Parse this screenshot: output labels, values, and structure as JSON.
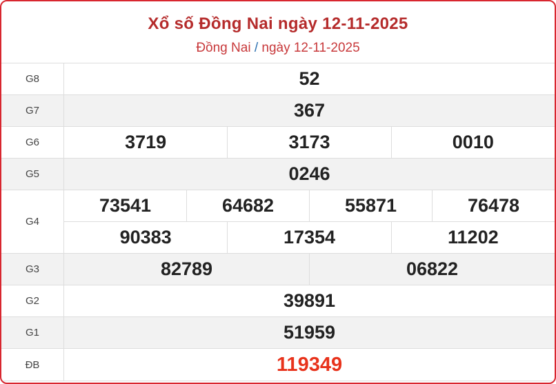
{
  "header": {
    "title": "Xổ số Đồng Nai ngày 12-11-2025",
    "breadcrumb_province": "Đồng Nai",
    "breadcrumb_sep": "/",
    "breadcrumb_date": "ngày 12-11-2025"
  },
  "colors": {
    "border": "#d8262f",
    "title": "#b52b2b",
    "special": "#e8331c"
  },
  "prizes": [
    {
      "label": "G8",
      "lines": [
        [
          "52"
        ]
      ]
    },
    {
      "label": "G7",
      "lines": [
        [
          "367"
        ]
      ]
    },
    {
      "label": "G6",
      "lines": [
        [
          "3719",
          "3173",
          "0010"
        ]
      ]
    },
    {
      "label": "G5",
      "lines": [
        [
          "0246"
        ]
      ]
    },
    {
      "label": "G4",
      "lines": [
        [
          "73541",
          "64682",
          "55871",
          "76478"
        ],
        [
          "90383",
          "17354",
          "11202"
        ]
      ]
    },
    {
      "label": "G3",
      "lines": [
        [
          "82789",
          "06822"
        ]
      ]
    },
    {
      "label": "G2",
      "lines": [
        [
          "39891"
        ]
      ]
    },
    {
      "label": "G1",
      "lines": [
        [
          "51959"
        ]
      ]
    },
    {
      "label": "ĐB",
      "lines": [
        [
          "119349"
        ]
      ]
    }
  ]
}
